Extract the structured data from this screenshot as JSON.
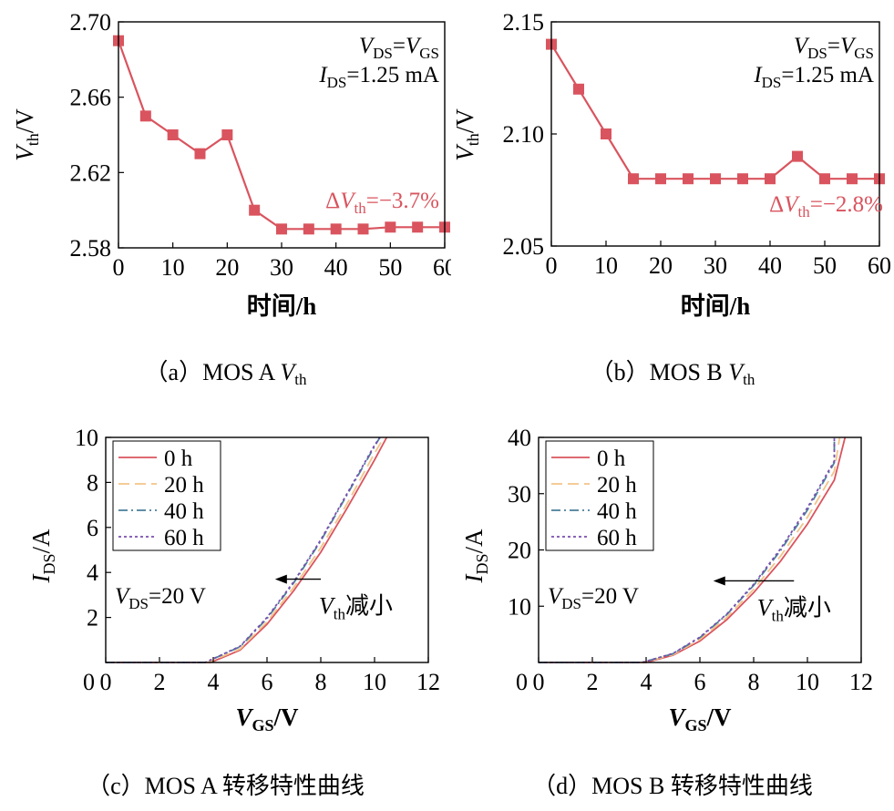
{
  "captions": {
    "a": {
      "prefix": "（a）MOS A ",
      "var": "V",
      "sub": "th"
    },
    "b": {
      "prefix": "（b）MOS B ",
      "var": "V",
      "sub": "th"
    },
    "c": {
      "text": "（c）MOS A 转移特性曲线"
    },
    "d": {
      "text": "（d）MOS B 转移特性曲线"
    }
  },
  "chart_data": [
    {
      "id": "a",
      "type": "line",
      "xlabel": "时间/h",
      "ylabel": {
        "var": "V",
        "sub": "th",
        "tail": "/V"
      },
      "xlim": [
        0,
        60
      ],
      "ylim": [
        2.58,
        2.7
      ],
      "xticks": [
        0,
        10,
        20,
        30,
        40,
        50,
        60
      ],
      "yticks": [
        2.58,
        2.62,
        2.66,
        2.7
      ],
      "ytick_labels": [
        "2.58",
        "2.62",
        "2.66",
        "2.70"
      ],
      "grid": false,
      "series": [
        {
          "color": "#d9545e",
          "marker": "square",
          "x": [
            0,
            5,
            10,
            15,
            20,
            25,
            30,
            35,
            40,
            45,
            50,
            55,
            60
          ],
          "y": [
            2.69,
            2.65,
            2.64,
            2.63,
            2.64,
            2.6,
            2.59,
            2.59,
            2.59,
            2.59,
            2.591,
            2.591,
            2.591
          ]
        }
      ],
      "annotations": {
        "condition1": {
          "v1": "V",
          "s1": "DS",
          "eq": "=",
          "v2": "V",
          "s2": "GS"
        },
        "condition2": {
          "v1": "I",
          "s1": "DS",
          "eq": "=1.25 mA"
        },
        "delta": {
          "d": "Δ",
          "v": "V",
          "s": "th",
          "eq": "=−3.7%"
        }
      }
    },
    {
      "id": "b",
      "type": "line",
      "xlabel": "时间/h",
      "ylabel": {
        "var": "V",
        "sub": "th",
        "tail": "/V"
      },
      "xlim": [
        0,
        60
      ],
      "ylim": [
        2.05,
        2.15
      ],
      "xticks": [
        0,
        10,
        20,
        30,
        40,
        50,
        60
      ],
      "yticks": [
        2.05,
        2.1,
        2.15
      ],
      "ytick_labels": [
        "2.05",
        "2.10",
        "2.15"
      ],
      "grid": false,
      "series": [
        {
          "color": "#d9545e",
          "marker": "square",
          "x": [
            0,
            5,
            10,
            15,
            20,
            25,
            30,
            35,
            40,
            45,
            50,
            55,
            60
          ],
          "y": [
            2.14,
            2.12,
            2.1,
            2.08,
            2.08,
            2.08,
            2.08,
            2.08,
            2.08,
            2.09,
            2.08,
            2.08,
            2.08
          ]
        }
      ],
      "annotations": {
        "condition1": {
          "v1": "V",
          "s1": "DS",
          "eq": "=",
          "v2": "V",
          "s2": "GS"
        },
        "condition2": {
          "v1": "I",
          "s1": "DS",
          "eq": "=1.25 mA"
        },
        "delta": {
          "d": "Δ",
          "v": "V",
          "s": "th",
          "eq": "=−2.8%"
        }
      }
    },
    {
      "id": "c",
      "type": "line",
      "xlabel": {
        "var": "V",
        "sub": "GS",
        "tail": "/V"
      },
      "ylabel": {
        "var": "I",
        "sub": "DS",
        "tail": "/A"
      },
      "xlim": [
        0,
        12
      ],
      "ylim": [
        0,
        10
      ],
      "xticks": [
        0,
        2,
        4,
        6,
        8,
        10,
        12
      ],
      "yticks": [
        2,
        4,
        6,
        8,
        10
      ],
      "grid": false,
      "legend_position": "top-left",
      "series": [
        {
          "name": "0 h",
          "color": "#d9545e",
          "dash": "solid",
          "x": [
            0,
            3.9,
            5,
            6,
            7,
            8,
            9,
            10,
            10.45
          ],
          "y": [
            0,
            0,
            0.55,
            1.7,
            3.2,
            4.9,
            6.9,
            9.0,
            10
          ]
        },
        {
          "name": "20 h",
          "color": "#f2c48a",
          "dash": "long-dash",
          "x": [
            0,
            3.8,
            5,
            6,
            7,
            8,
            9,
            10,
            10.35
          ],
          "y": [
            0,
            0,
            0.6,
            1.8,
            3.35,
            5.1,
            7.1,
            9.3,
            10
          ]
        },
        {
          "name": "40 h",
          "color": "#4a7f9a",
          "dash": "dash-dot",
          "x": [
            0,
            3.7,
            5,
            6,
            7,
            8,
            9,
            10,
            10.2
          ],
          "y": [
            0,
            0,
            0.7,
            1.95,
            3.55,
            5.4,
            7.5,
            9.6,
            10
          ]
        },
        {
          "name": "60 h",
          "color": "#7a4fb0",
          "dash": "dotted",
          "x": [
            0,
            3.7,
            5,
            6,
            7,
            8,
            9,
            10,
            10.2
          ],
          "y": [
            0,
            0,
            0.72,
            2.0,
            3.6,
            5.45,
            7.55,
            9.65,
            10
          ]
        }
      ],
      "annotations": {
        "condition": {
          "v": "V",
          "s": "DS",
          "eq": "=20 V"
        },
        "arrow_label": {
          "v": "V",
          "s": "th",
          "text": "减小"
        },
        "arrow_from": [
          8.0,
          3.7
        ],
        "arrow_to": [
          6.3,
          3.7
        ]
      }
    },
    {
      "id": "d",
      "type": "line",
      "xlabel": {
        "var": "V",
        "sub": "GS",
        "tail": "/V"
      },
      "ylabel": {
        "var": "I",
        "sub": "DS",
        "tail": "/A"
      },
      "xlim": [
        0,
        12
      ],
      "ylim": [
        0,
        40
      ],
      "xticks": [
        0,
        2,
        4,
        6,
        8,
        10,
        12
      ],
      "yticks": [
        10,
        20,
        30,
        40
      ],
      "grid": false,
      "legend_position": "top-left",
      "series": [
        {
          "name": "0 h",
          "color": "#d9545e",
          "dash": "solid",
          "x": [
            0,
            4.0,
            5,
            6,
            7,
            8,
            9,
            10,
            11,
            11.4
          ],
          "y": [
            0,
            0,
            1.3,
            3.8,
            7.6,
            12.4,
            18.0,
            24.6,
            32.4,
            40
          ]
        },
        {
          "name": "20 h",
          "color": "#f2c48a",
          "dash": "long-dash",
          "x": [
            0,
            3.9,
            5,
            6,
            7,
            8,
            9,
            10,
            11,
            11.2
          ],
          "y": [
            0,
            0,
            1.4,
            4.1,
            8.0,
            13.0,
            18.9,
            25.8,
            34.0,
            40
          ]
        },
        {
          "name": "40 h",
          "color": "#4a7f9a",
          "dash": "dash-dot",
          "x": [
            0,
            3.85,
            5,
            6,
            7,
            8,
            9,
            10,
            11,
            11.0
          ],
          "y": [
            0,
            0,
            1.55,
            4.4,
            8.5,
            13.7,
            19.9,
            27.1,
            35.5,
            40
          ]
        },
        {
          "name": "60 h",
          "color": "#7a4fb0",
          "dash": "dotted",
          "x": [
            0,
            3.85,
            5,
            6,
            7,
            8,
            9,
            10,
            11,
            11.0
          ],
          "y": [
            0,
            0,
            1.6,
            4.5,
            8.6,
            13.9,
            20.2,
            27.5,
            35.8,
            40
          ]
        }
      ],
      "annotations": {
        "condition": {
          "v": "V",
          "s": "DS",
          "eq": "=20 V"
        },
        "arrow_label": {
          "v": "V",
          "s": "th",
          "text": "减小"
        },
        "arrow_from": [
          9.5,
          14.5
        ],
        "arrow_to": [
          6.5,
          14.5
        ]
      }
    }
  ]
}
